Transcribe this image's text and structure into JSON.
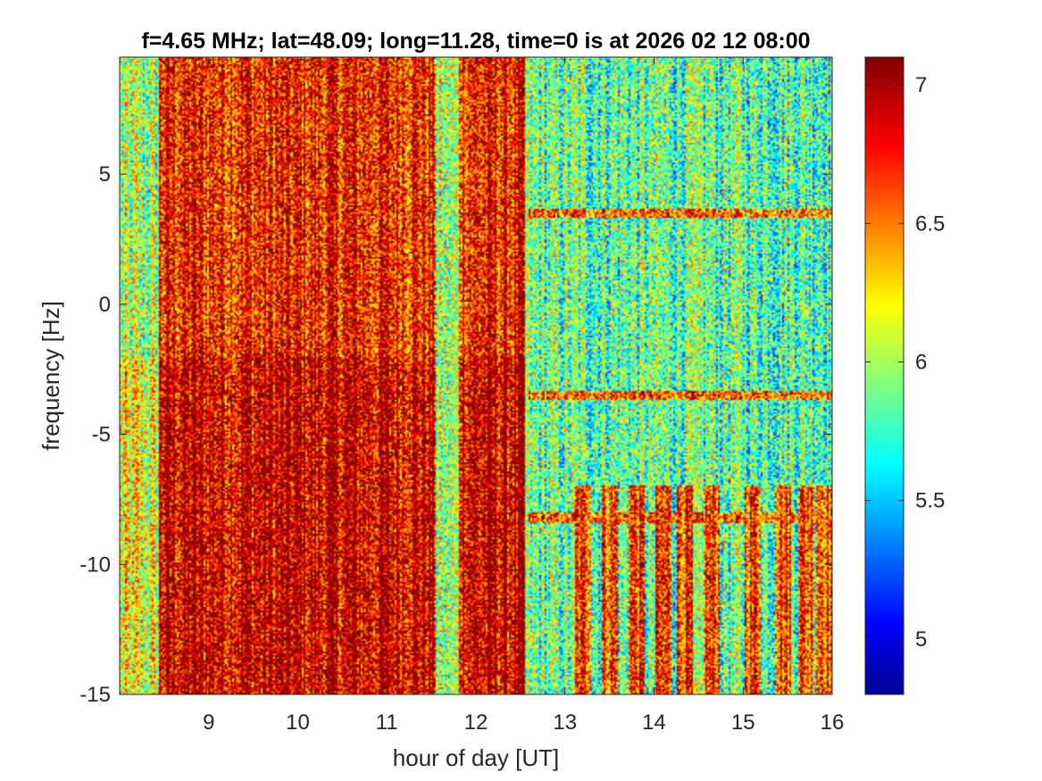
{
  "chart_data": {
    "type": "heatmap",
    "title": "f=4.65 MHz;  lat=48.09; long=11.28, time=0 is at 2026 02 12 08:00",
    "xlabel": "hour of day [UT]",
    "ylabel": "frequency [Hz]",
    "xlim": [
      8.0,
      16.0
    ],
    "ylim": [
      -15,
      9.5
    ],
    "x_ticks": [
      9,
      10,
      11,
      12,
      13,
      14,
      15,
      16
    ],
    "y_ticks": [
      5,
      0,
      -5,
      -10,
      -15
    ],
    "x_tick_labels": [
      "9",
      "10",
      "11",
      "12",
      "13",
      "14",
      "15",
      "16"
    ],
    "y_tick_labels": [
      "5",
      "0",
      "-5",
      "-10",
      "-15"
    ],
    "colorbar": {
      "colormap": "jet",
      "clim": [
        4.8,
        7.1
      ],
      "ticks": [
        7,
        6.5,
        6,
        5.5,
        5
      ],
      "tick_labels": [
        "7",
        "6.5",
        "6",
        "5.5",
        "5"
      ]
    },
    "features": {
      "high_intensity_bands_hours": [
        [
          8.45,
          11.55
        ],
        [
          11.8,
          12.55
        ]
      ],
      "low_frequency_bursts_hours": [
        13.2,
        13.5,
        13.8,
        14.1,
        14.35,
        14.65,
        15.1,
        15.45,
        15.7,
        15.9
      ],
      "weak_horizontal_traces_hz": [
        3.5,
        -3.5,
        -8.2
      ],
      "burst_top_hz": -7
    },
    "grid": false
  }
}
